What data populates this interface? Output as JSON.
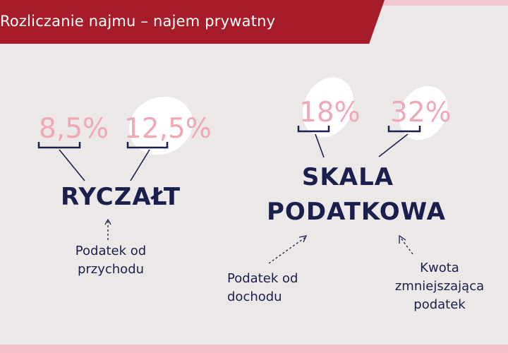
{
  "header": {
    "title": "Rozliczanie najmu – najem prywatny"
  },
  "colors": {
    "banner": "#a71c2b",
    "accent_pink": "#f0a8b4",
    "navy": "#1b1f4d",
    "background": "#ece8e8"
  },
  "ryczalt": {
    "title": "RYCZAŁT",
    "rates": [
      "8,5%",
      "12,5%"
    ],
    "note_line1": "Podatek od",
    "note_line2": "przychodu"
  },
  "skala": {
    "title_line1": "SKALA",
    "title_line2": "PODATKOWA",
    "rates": [
      "18%",
      "32%"
    ],
    "note_left_line1": "Podatek od",
    "note_left_line2": "dochodu",
    "note_right_line1": "Kwota",
    "note_right_line2": "zmniejszająca",
    "note_right_line3": "podatek"
  }
}
